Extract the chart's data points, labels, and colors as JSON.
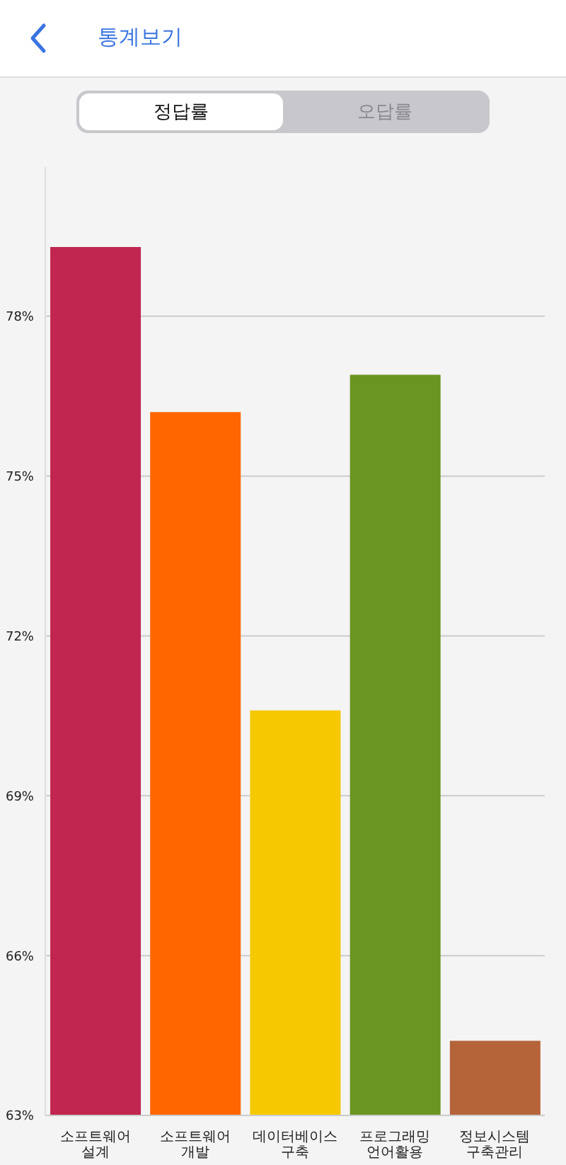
{
  "chart_data": {
    "type": "bar",
    "title": "통계보기",
    "annotations": [
      "정답률",
      "오답률"
    ],
    "categories": [
      "소프트웨어 설계",
      "소프트웨어 개발",
      "데이터베이스 구축",
      "프로그래밍 언어활용",
      "정보시스템 구축관리"
    ],
    "values": [
      79.3,
      76.2,
      70.6,
      76.9,
      64.4
    ],
    "colors": [
      "#c0264f",
      "#ff6600",
      "#f5c800",
      "#6b9522",
      "#b5643a"
    ],
    "ylim": [
      63,
      80.8
    ],
    "yticks": [
      {
        "value": 63,
        "label": "63%"
      },
      {
        "value": 66,
        "label": "66%"
      },
      {
        "value": 69,
        "label": "69%"
      },
      {
        "value": 72,
        "label": "72%"
      },
      {
        "value": 75,
        "label": "75%"
      },
      {
        "value": 78,
        "label": "78%"
      }
    ],
    "grid": "y"
  }
}
